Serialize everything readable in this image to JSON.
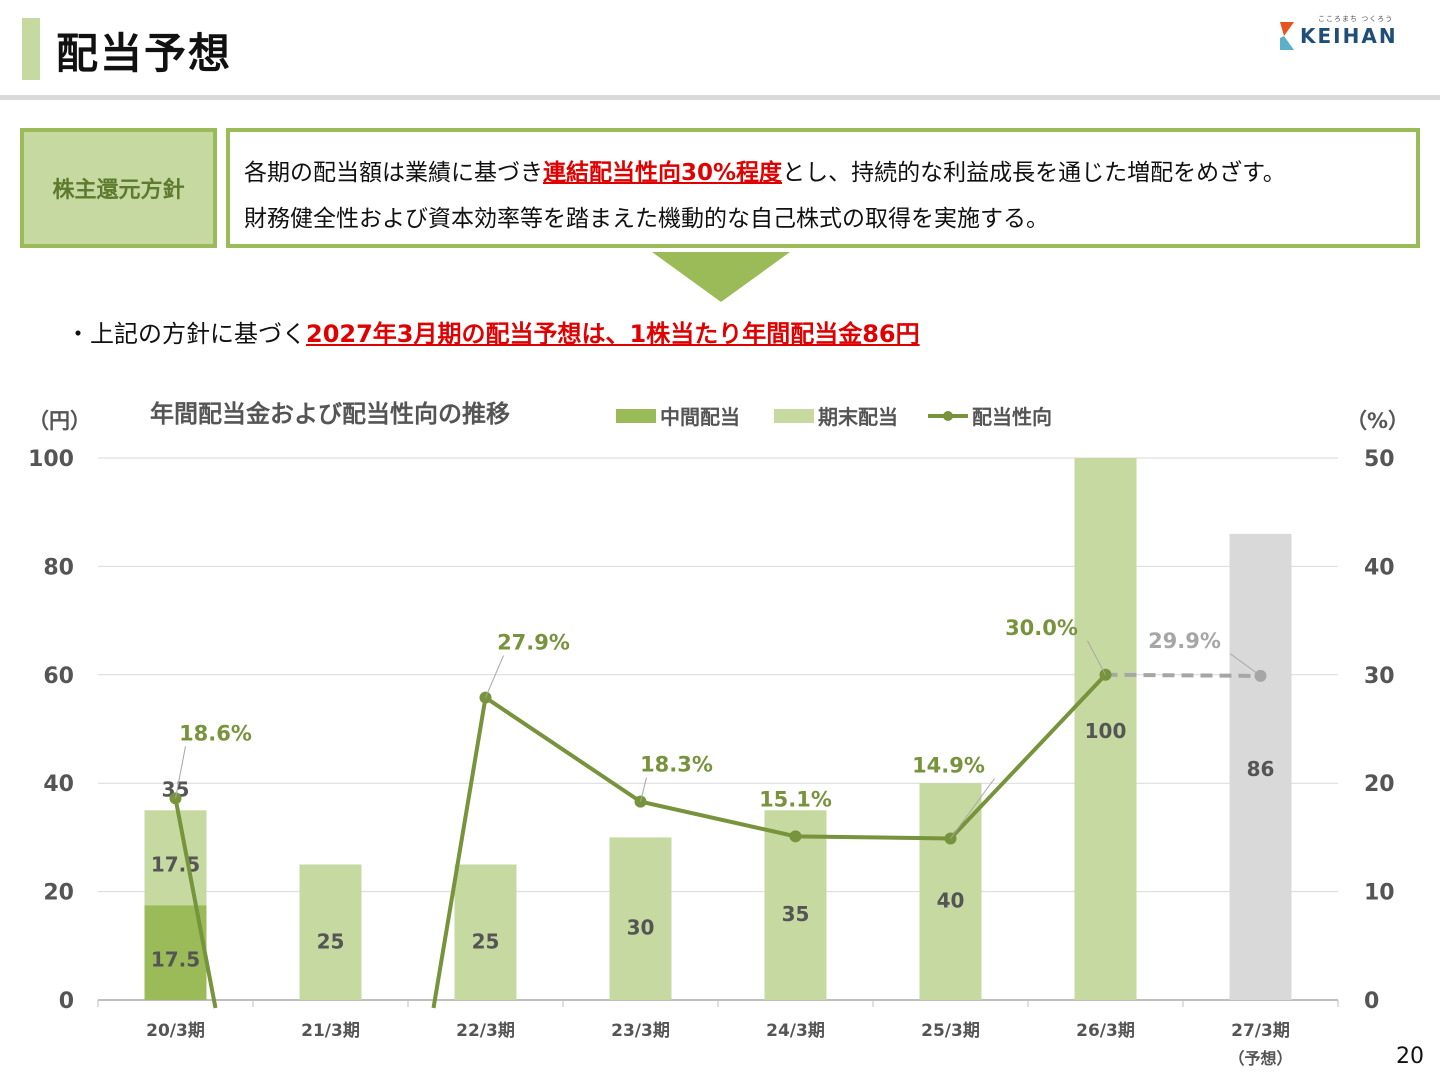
{
  "header": {
    "title": "配当予想",
    "page_number": "20"
  },
  "logo": {
    "text": "KEIHAN",
    "tagline": "こころまち つくろう"
  },
  "policy": {
    "label": "株主還元方針",
    "line1_pre": "各期の配当額は業績に基づき",
    "line1_highlight": "連結配当性向30%程度",
    "line1_post": "とし、持続的な利益成長を通じた増配をめざす。",
    "line2": "財務健全性および資本効率等を踏まえた機動的な自己株式の取得を実施する。"
  },
  "bullet": {
    "pre": "・上記の方針に基づく",
    "highlight": "2027年3月期の配当予想は、1株当たり年間配当金86円"
  },
  "colors": {
    "interim": "#9bbb59",
    "year_end": "#c5d9a0",
    "forecast": "#d9d9d9",
    "payout_line": "#77933c",
    "forecast_line": "#a6a6a6",
    "highlight_red": "#e00000",
    "frame_green": "#9bbb59"
  },
  "chart_data": {
    "type": "bar",
    "title": "年間配当金および配当性向の推移",
    "ylabel_left": "（円）",
    "ylabel_right": "（%）",
    "ylim_left": [
      0,
      100
    ],
    "ylim_right": [
      0,
      50
    ],
    "yticks_left": [
      0,
      20,
      40,
      60,
      80,
      100
    ],
    "yticks_right": [
      0,
      10,
      20,
      30,
      40,
      50
    ],
    "grid": true,
    "legend_position": "top",
    "categories": [
      "20/3期",
      "21/3期",
      "22/3期",
      "23/3期",
      "24/3期",
      "25/3期",
      "26/3期",
      "27/3期"
    ],
    "category_notes": [
      "",
      "",
      "",
      "",
      "",
      "",
      "",
      "（予想）"
    ],
    "series": [
      {
        "name": "中間配当",
        "values": [
          17.5,
          0,
          0,
          0,
          0,
          0,
          0,
          0
        ]
      },
      {
        "name": "期末配当",
        "values": [
          17.5,
          25,
          25,
          30,
          35,
          40,
          100,
          86
        ]
      },
      {
        "name": "配当性向",
        "values": [
          18.6,
          null,
          27.9,
          18.3,
          15.1,
          14.9,
          30.0,
          29.9
        ]
      }
    ],
    "bar_labels": [
      {
        "interim": "17.5",
        "year_end": "17.5",
        "total": "35"
      },
      {
        "year_end": "25"
      },
      {
        "year_end": "25"
      },
      {
        "year_end": "30"
      },
      {
        "year_end": "35"
      },
      {
        "year_end": "40"
      },
      {
        "year_end": "100"
      },
      {
        "year_end": "86"
      }
    ],
    "payout_labels": [
      "18.6%",
      "",
      "27.9%",
      "18.3%",
      "15.1%",
      "14.9%",
      "30.0%",
      "29.9%"
    ],
    "forecast_index": 7
  }
}
